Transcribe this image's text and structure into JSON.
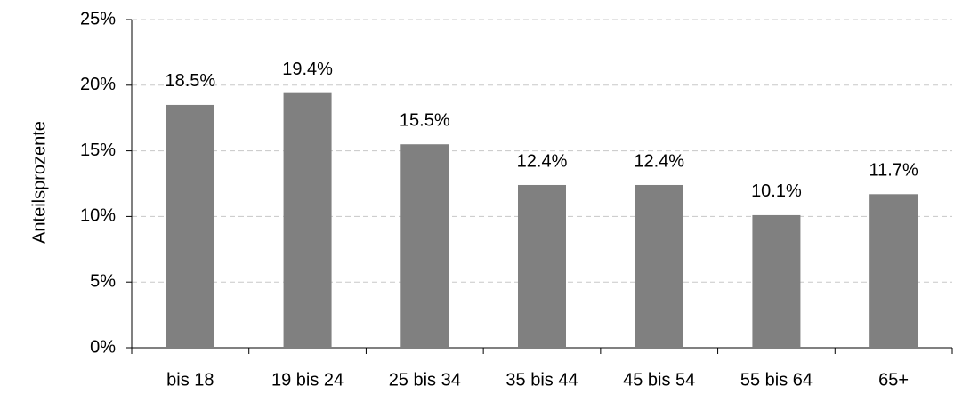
{
  "chart_data": {
    "type": "bar",
    "y_label": "Anteilsprozente",
    "categories": [
      "bis 18",
      "19 bis 24",
      "25 bis 34",
      "35 bis 44",
      "45 bis 54",
      "55 bis 64",
      "65+"
    ],
    "values": [
      18.5,
      19.4,
      15.5,
      12.4,
      12.4,
      10.1,
      11.7
    ],
    "value_labels": [
      "18.5%",
      "19.4%",
      "15.5%",
      "12.4%",
      "12.4%",
      "10.1%",
      "11.7%"
    ],
    "color": "#808080",
    "ylim": [
      0,
      25
    ],
    "yticks": [
      {
        "value": 0,
        "label": "0%"
      },
      {
        "value": 5,
        "label": "5%"
      },
      {
        "value": 10,
        "label": "10%"
      },
      {
        "value": 15,
        "label": "15%"
      },
      {
        "value": 20,
        "label": "20%"
      },
      {
        "value": 25,
        "label": "25%"
      }
    ],
    "grid": true
  }
}
